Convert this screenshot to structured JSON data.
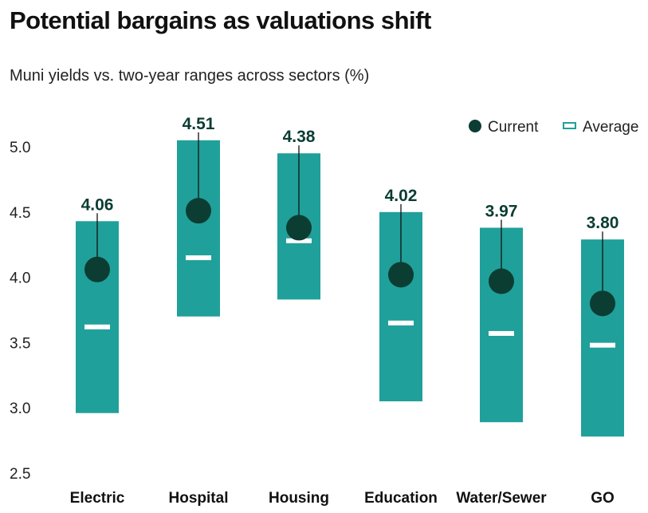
{
  "title": "Potential bargains as valuations shift",
  "subtitle": "Muni yields vs. two-year ranges across sectors (%)",
  "legend": {
    "current_label": "Current",
    "average_label": "Average",
    "placement": "top-right"
  },
  "colors": {
    "range": "#20a09a",
    "current": "#0b3d33",
    "average": "#ffffff",
    "avg_legend_stroke": "#20a09a"
  },
  "chart_data": {
    "type": "range-bar",
    "categories": [
      "Electric",
      "Hospital",
      "Housing",
      "Education",
      "Water/Sewer",
      "GO"
    ],
    "range_low": [
      2.96,
      3.7,
      3.83,
      3.05,
      2.89,
      2.78
    ],
    "range_high": [
      4.43,
      5.05,
      4.95,
      4.5,
      4.38,
      4.29
    ],
    "current": [
      4.06,
      4.51,
      4.38,
      4.02,
      3.97,
      3.8
    ],
    "average": [
      3.62,
      4.15,
      4.28,
      3.65,
      3.57,
      3.48
    ],
    "value_labels": [
      "4.06",
      "4.51",
      "4.38",
      "4.02",
      "3.97",
      "3.80"
    ],
    "yticks": [
      "5.0",
      "4.5",
      "4.0",
      "3.5",
      "3.0",
      "2.5"
    ],
    "ylim": [
      2.5,
      5.0
    ],
    "grid": false
  }
}
